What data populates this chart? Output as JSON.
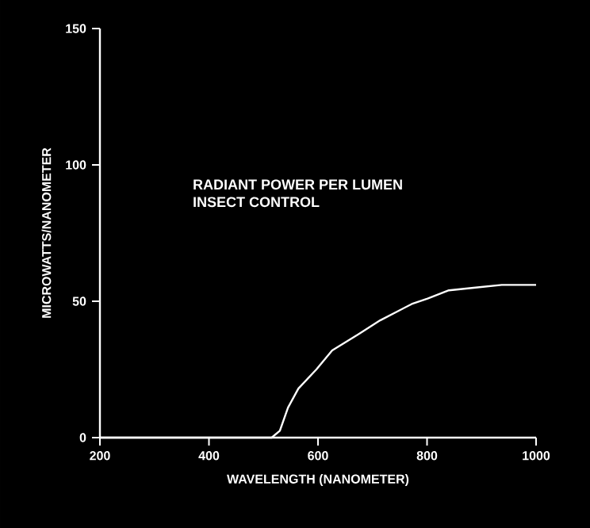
{
  "chart_data": {
    "type": "line",
    "title": "RADIANT POWER PER LUMEN",
    "subtitle": "INSECT CONTROL",
    "xlabel": "WAVELENGTH (NANOMETER)",
    "ylabel": "MICROWATTS/NANOMETER",
    "series": [
      {
        "color": "#ffffff",
        "x": [
          200,
          300,
          400,
          500,
          515,
          530,
          545,
          564,
          597,
          626,
          675,
          714,
          772,
          801,
          840,
          889,
          937,
          1000
        ],
        "values": [
          0,
          0,
          0,
          0,
          0,
          2.5,
          11,
          18,
          25,
          32,
          38,
          43,
          49,
          51,
          54,
          55,
          56,
          56
        ]
      }
    ],
    "xlim": [
      200,
      1000
    ],
    "xticks": [
      200,
      400,
      600,
      800,
      1000
    ],
    "ylim": [
      0,
      150
    ],
    "yticks": [
      0,
      50,
      100,
      150
    ],
    "grid": false,
    "marker": "none",
    "line_style": "solid"
  }
}
